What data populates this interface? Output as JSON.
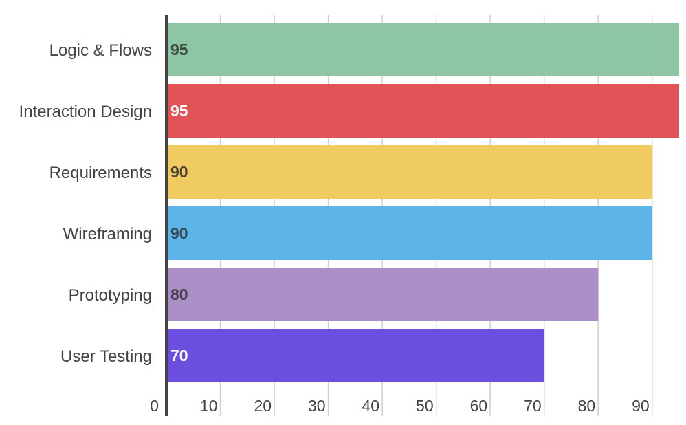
{
  "chart_data": {
    "type": "bar",
    "orientation": "horizontal",
    "title": "",
    "xlabel": "",
    "ylabel": "",
    "xlim": [
      0,
      95
    ],
    "x_ticks": [
      0,
      10,
      20,
      30,
      40,
      50,
      60,
      70,
      80,
      90
    ],
    "grid": true,
    "legend": "none",
    "categories": [
      "Logic & Flows",
      "Interaction Design",
      "Requirements",
      "Wireframing",
      "Prototyping",
      "User Testing"
    ],
    "values": [
      95,
      95,
      90,
      90,
      80,
      70
    ],
    "colors": [
      "#8dc5a5",
      "#e05458",
      "#f0cb62",
      "#5db4e8",
      "#ab90c7",
      "#6d4fe0"
    ],
    "value_label_colors": [
      "#3c4a40",
      "#ffffff",
      "#4a4232",
      "#3a4550",
      "#4a3f52",
      "#ffffff"
    ]
  }
}
